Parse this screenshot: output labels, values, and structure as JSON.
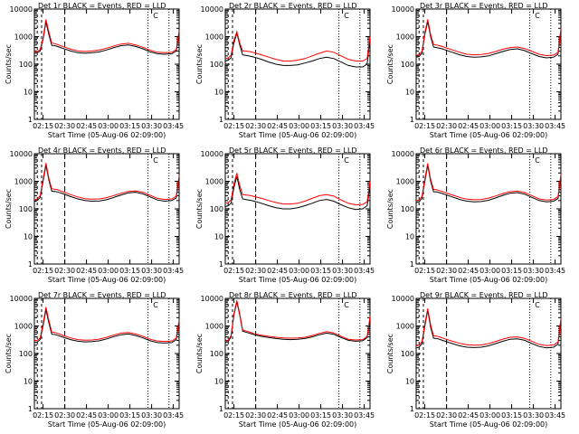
{
  "colors": {
    "events": "#000000",
    "lld": "#ff0000",
    "axis": "#000000"
  },
  "shared": {
    "ylabel": "Counts/sec",
    "xlabel": "Start Time (05-Aug-06 02:09:00)",
    "xticks": [
      "02:15",
      "02:30",
      "02:45",
      "03:00",
      "03:15",
      "03:30",
      "03:45"
    ],
    "yticks": [
      "1",
      "10",
      "100",
      "1000",
      "10000"
    ],
    "corner_mark": "C"
  },
  "chart_data": [
    {
      "type": "line",
      "title": "Det 1r BLACK = Events, RED = LLD",
      "x_minutes": [
        0,
        2,
        4,
        6,
        8,
        10,
        12,
        14,
        16,
        18,
        20,
        25,
        30,
        35,
        40,
        45,
        50,
        55,
        60,
        65,
        70,
        75,
        80,
        85,
        90,
        95,
        98,
        99,
        100
      ],
      "xlim": [
        0,
        100
      ],
      "ylim": [
        1,
        10000
      ],
      "yscale": "log",
      "series": [
        {
          "name": "Events",
          "color": "#000000",
          "values": [
            250,
            260,
            300,
            800,
            3400,
            1200,
            480,
            470,
            440,
            400,
            370,
            300,
            260,
            250,
            260,
            280,
            330,
            400,
            470,
            500,
            440,
            360,
            280,
            240,
            230,
            240,
            300,
            600,
            1500
          ]
        },
        {
          "name": "LLD",
          "color": "#ff0000",
          "values": [
            280,
            290,
            340,
            900,
            4200,
            1500,
            580,
            560,
            520,
            470,
            430,
            350,
            300,
            290,
            300,
            330,
            380,
            460,
            540,
            570,
            500,
            410,
            320,
            270,
            260,
            270,
            340,
            700,
            1700
          ]
        }
      ]
    },
    {
      "type": "line",
      "title": "Det 2r BLACK = Events, RED = LLD",
      "x_minutes": [
        0,
        2,
        4,
        6,
        8,
        10,
        12,
        14,
        16,
        18,
        20,
        25,
        30,
        35,
        40,
        45,
        50,
        55,
        60,
        65,
        70,
        75,
        80,
        85,
        90,
        95,
        98,
        99,
        100
      ],
      "xlim": [
        0,
        100
      ],
      "ylim": [
        1,
        10000
      ],
      "yscale": "log",
      "series": [
        {
          "name": "Events",
          "color": "#000000",
          "values": [
            130,
            140,
            170,
            600,
            1350,
            500,
            220,
            210,
            200,
            190,
            180,
            150,
            120,
            100,
            90,
            90,
            95,
            110,
            130,
            160,
            180,
            160,
            120,
            90,
            80,
            80,
            100,
            300,
            900
          ]
        },
        {
          "name": "LLD",
          "color": "#ff0000",
          "values": [
            160,
            170,
            210,
            750,
            1500,
            600,
            300,
            300,
            290,
            280,
            260,
            220,
            180,
            150,
            130,
            130,
            140,
            160,
            200,
            250,
            300,
            270,
            200,
            150,
            130,
            130,
            160,
            400,
            1000
          ]
        }
      ]
    },
    {
      "type": "line",
      "title": "Det 3r BLACK = Events, RED = LLD",
      "x_minutes": [
        0,
        2,
        4,
        6,
        8,
        10,
        12,
        14,
        16,
        18,
        20,
        25,
        30,
        35,
        40,
        45,
        50,
        55,
        60,
        65,
        70,
        75,
        80,
        85,
        90,
        95,
        98,
        99,
        100
      ],
      "xlim": [
        0,
        100
      ],
      "ylim": [
        1,
        10000
      ],
      "yscale": "log",
      "series": [
        {
          "name": "Events",
          "color": "#000000",
          "values": [
            180,
            190,
            250,
            1200,
            3500,
            1000,
            420,
            400,
            380,
            360,
            330,
            270,
            220,
            190,
            180,
            185,
            200,
            240,
            290,
            340,
            360,
            310,
            240,
            190,
            170,
            180,
            230,
            600,
            1800
          ]
        },
        {
          "name": "LLD",
          "color": "#ff0000",
          "values": [
            210,
            220,
            290,
            1400,
            4200,
            1200,
            520,
            500,
            470,
            440,
            400,
            330,
            270,
            230,
            220,
            225,
            245,
            290,
            350,
            400,
            420,
            370,
            290,
            230,
            205,
            215,
            270,
            700,
            2000
          ]
        }
      ]
    },
    {
      "type": "line",
      "title": "Det 4r BLACK = Events, RED = LLD",
      "x_minutes": [
        0,
        2,
        4,
        6,
        8,
        10,
        12,
        14,
        16,
        18,
        20,
        25,
        30,
        35,
        40,
        45,
        50,
        55,
        60,
        65,
        70,
        75,
        80,
        85,
        90,
        95,
        98,
        99,
        100
      ],
      "xlim": [
        0,
        100
      ],
      "ylim": [
        1,
        10000
      ],
      "yscale": "log",
      "series": [
        {
          "name": "Events",
          "color": "#000000",
          "values": [
            180,
            200,
            260,
            1000,
            3800,
            1100,
            440,
            430,
            410,
            380,
            350,
            280,
            230,
            200,
            190,
            195,
            215,
            260,
            320,
            380,
            400,
            350,
            270,
            210,
            190,
            200,
            250,
            600,
            1400
          ]
        },
        {
          "name": "LLD",
          "color": "#ff0000",
          "values": [
            210,
            230,
            300,
            1200,
            4600,
            1300,
            540,
            520,
            490,
            450,
            410,
            330,
            270,
            235,
            225,
            230,
            255,
            305,
            370,
            430,
            450,
            400,
            310,
            240,
            220,
            230,
            290,
            700,
            1600
          ]
        }
      ]
    },
    {
      "type": "line",
      "title": "Det 5r BLACK = Events, RED = LLD",
      "x_minutes": [
        0,
        2,
        4,
        6,
        8,
        10,
        12,
        14,
        16,
        18,
        20,
        25,
        30,
        35,
        40,
        45,
        50,
        55,
        60,
        65,
        70,
        75,
        80,
        85,
        90,
        95,
        98,
        99,
        100
      ],
      "xlim": [
        0,
        100
      ],
      "ylim": [
        1,
        10000
      ],
      "yscale": "log",
      "series": [
        {
          "name": "Events",
          "color": "#000000",
          "values": [
            120,
            130,
            160,
            600,
            1500,
            500,
            230,
            220,
            210,
            200,
            190,
            160,
            130,
            110,
            100,
            100,
            110,
            130,
            160,
            200,
            220,
            190,
            140,
            110,
            95,
            100,
            130,
            300,
            800
          ]
        },
        {
          "name": "LLD",
          "color": "#ff0000",
          "values": [
            160,
            170,
            210,
            800,
            2000,
            700,
            330,
            320,
            310,
            300,
            280,
            240,
            200,
            170,
            150,
            150,
            160,
            190,
            240,
            300,
            330,
            290,
            210,
            160,
            140,
            145,
            180,
            400,
            1000
          ]
        }
      ]
    },
    {
      "type": "line",
      "title": "Det 6r BLACK = Events, RED = LLD",
      "x_minutes": [
        0,
        2,
        4,
        6,
        8,
        10,
        12,
        14,
        16,
        18,
        20,
        25,
        30,
        35,
        40,
        45,
        50,
        55,
        60,
        65,
        70,
        75,
        80,
        85,
        90,
        95,
        98,
        99,
        100
      ],
      "xlim": [
        0,
        100
      ],
      "ylim": [
        1,
        10000
      ],
      "yscale": "log",
      "series": [
        {
          "name": "Events",
          "color": "#000000",
          "values": [
            170,
            180,
            240,
            1000,
            3800,
            1000,
            420,
            410,
            390,
            360,
            330,
            270,
            220,
            190,
            180,
            185,
            205,
            250,
            310,
            370,
            390,
            340,
            260,
            200,
            180,
            190,
            240,
            600,
            1600
          ]
        },
        {
          "name": "LLD",
          "color": "#ff0000",
          "values": [
            200,
            210,
            280,
            1200,
            4500,
            1200,
            510,
            490,
            460,
            430,
            390,
            320,
            260,
            225,
            215,
            220,
            245,
            295,
            360,
            420,
            440,
            390,
            300,
            230,
            210,
            220,
            280,
            700,
            1800
          ]
        }
      ]
    },
    {
      "type": "line",
      "title": "Det 7r BLACK = Events, RED = LLD",
      "x_minutes": [
        0,
        2,
        4,
        6,
        8,
        10,
        12,
        14,
        16,
        18,
        20,
        25,
        30,
        35,
        40,
        45,
        50,
        55,
        60,
        65,
        70,
        75,
        80,
        85,
        90,
        95,
        98,
        99,
        100
      ],
      "xlim": [
        0,
        100
      ],
      "ylim": [
        1,
        10000
      ],
      "yscale": "log",
      "series": [
        {
          "name": "Events",
          "color": "#000000",
          "values": [
            250,
            260,
            320,
            1000,
            3900,
            1300,
            500,
            490,
            460,
            420,
            390,
            320,
            280,
            265,
            270,
            290,
            340,
            410,
            480,
            510,
            450,
            370,
            290,
            250,
            240,
            250,
            320,
            700,
            1400
          ]
        },
        {
          "name": "LLD",
          "color": "#ff0000",
          "values": [
            290,
            300,
            370,
            1200,
            4800,
            1600,
            600,
            580,
            540,
            490,
            450,
            370,
            320,
            305,
            310,
            335,
            390,
            470,
            550,
            580,
            510,
            420,
            330,
            285,
            275,
            285,
            360,
            800,
            1600
          ]
        }
      ]
    },
    {
      "type": "line",
      "title": "Det 8r BLACK = Events, RED = LLD",
      "x_minutes": [
        0,
        2,
        4,
        6,
        8,
        10,
        12,
        14,
        16,
        18,
        20,
        25,
        30,
        35,
        40,
        45,
        50,
        55,
        60,
        65,
        70,
        75,
        80,
        85,
        90,
        95,
        98,
        99,
        100
      ],
      "xlim": [
        0,
        100
      ],
      "ylim": [
        1,
        10000
      ],
      "yscale": "log",
      "series": [
        {
          "name": "Events",
          "color": "#000000",
          "values": [
            250,
            270,
            400,
            2500,
            7500,
            2500,
            650,
            600,
            560,
            520,
            480,
            420,
            380,
            350,
            330,
            320,
            330,
            350,
            400,
            480,
            550,
            500,
            380,
            300,
            280,
            290,
            380,
            800,
            2000
          ]
        },
        {
          "name": "LLD",
          "color": "#ff0000",
          "values": [
            280,
            300,
            450,
            2800,
            8500,
            2800,
            720,
            660,
            620,
            570,
            520,
            460,
            420,
            390,
            370,
            360,
            370,
            390,
            450,
            540,
            620,
            560,
            420,
            330,
            310,
            320,
            420,
            900,
            2200
          ]
        }
      ]
    },
    {
      "type": "line",
      "title": "Det 9r BLACK = Events, RED = LLD",
      "x_minutes": [
        0,
        2,
        4,
        6,
        8,
        10,
        12,
        14,
        16,
        18,
        20,
        25,
        30,
        35,
        40,
        45,
        50,
        55,
        60,
        65,
        70,
        75,
        80,
        85,
        90,
        95,
        98,
        99,
        100
      ],
      "xlim": [
        0,
        100
      ],
      "ylim": [
        1,
        10000
      ],
      "yscale": "log",
      "series": [
        {
          "name": "Events",
          "color": "#000000",
          "values": [
            160,
            170,
            230,
            1000,
            3700,
            900,
            360,
            350,
            330,
            300,
            280,
            230,
            190,
            170,
            165,
            170,
            190,
            230,
            280,
            330,
            340,
            300,
            230,
            180,
            160,
            170,
            220,
            600,
            1700
          ]
        },
        {
          "name": "LLD",
          "color": "#ff0000",
          "values": [
            190,
            200,
            270,
            1200,
            4300,
            1100,
            440,
            430,
            400,
            370,
            340,
            280,
            235,
            210,
            200,
            205,
            230,
            275,
            335,
            390,
            400,
            355,
            275,
            215,
            195,
            205,
            260,
            700,
            1900
          ]
        }
      ]
    }
  ]
}
